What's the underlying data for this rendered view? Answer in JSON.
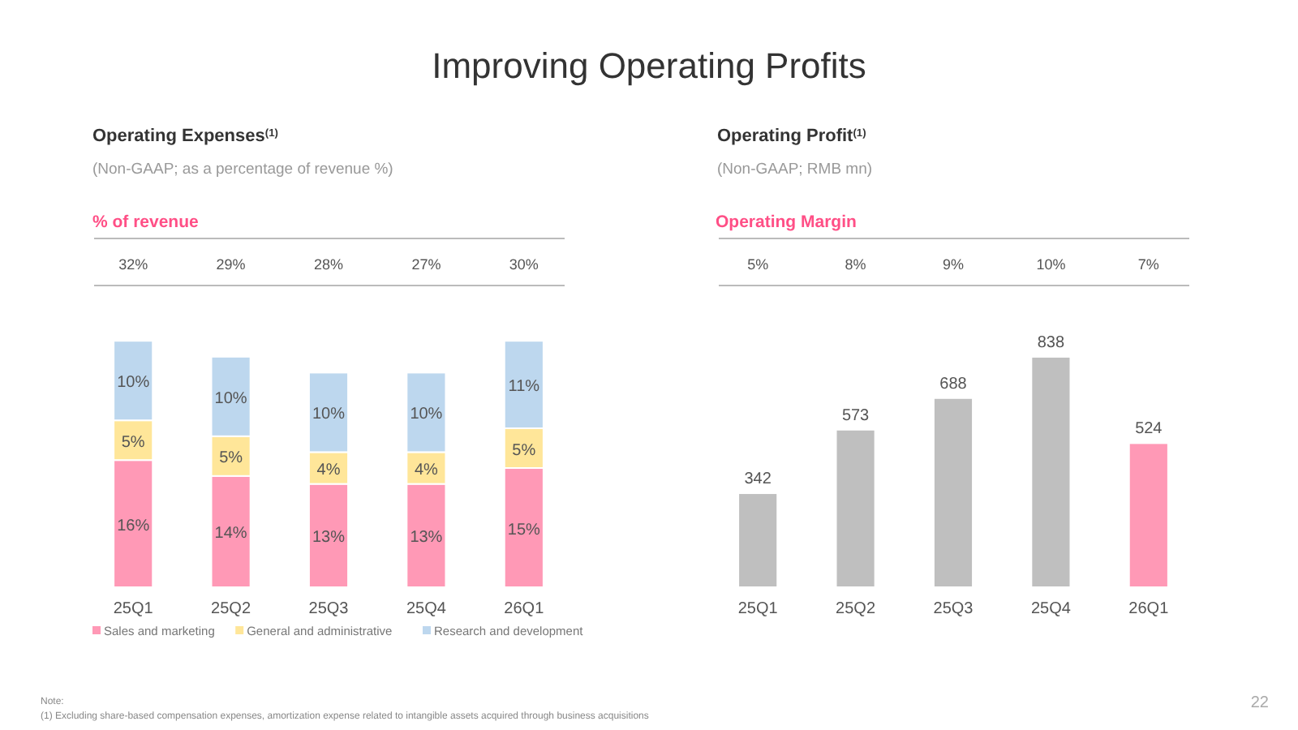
{
  "chart_data": [
    {
      "type": "bar",
      "title": "Operating Expenses$^{(1)}$",
      "subtitle": "(Non-GAAP; as a percentage of revenue %)",
      "categories": [
        "25Q1",
        "25Q2",
        "25Q3",
        "25Q4",
        "26Q1"
      ],
      "stacked": true,
      "legend": "bottom",
      "series": [
        {
          "name": "Sales and marketing",
          "color": "#ff99b6",
          "values": [
            16,
            14,
            13,
            13,
            15
          ],
          "value_labels": [
            "16%",
            "14%",
            "13%",
            "13%",
            "15%"
          ]
        },
        {
          "name": "General and administrative",
          "color": "#ffe699",
          "values": [
            5,
            5,
            4,
            4,
            5
          ],
          "value_labels": [
            "5%",
            "5%",
            "4%",
            "4%",
            "5%"
          ]
        },
        {
          "name": "Research and development",
          "color": "#bdd7ee",
          "values": [
            10,
            10,
            10,
            10,
            11
          ],
          "value_labels": [
            "10%",
            "10%",
            "10%",
            "10%",
            "11%"
          ]
        }
      ],
      "annotations": [
        "Improving Operating Profits",
        "% of revenue",
        "32%",
        "29%",
        "28%",
        "27%",
        "30%"
      ]
    },
    {
      "type": "bar",
      "title": "Operating Profit$^{(1)}$",
      "subtitle": "(Non-GAAP; RMB mn)",
      "categories": [
        "25Q1",
        "25Q2",
        "25Q3",
        "25Q4",
        "26Q1"
      ],
      "values": [
        342,
        573,
        688,
        838,
        524
      ],
      "colors": [
        "#bfbfbf",
        "#bfbfbf",
        "#bfbfbf",
        "#bfbfbf",
        "#ff99b6"
      ],
      "data_labels": true,
      "annotations": [
        "Operating Margin",
        "5%",
        "8%",
        "9%",
        "10%",
        "7%",
        "Note:",
        "(1)    Excluding share-based compensation expenses, amortization expense related to intangible assets acquired through business acquisitions",
        "22"
      ]
    }
  ]
}
